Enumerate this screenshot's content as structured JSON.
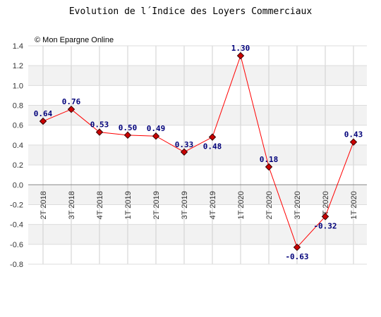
{
  "chart_data": {
    "type": "line",
    "title": "Evolution de l´Indice des Loyers Commerciaux",
    "credit": "© Mon Epargne Online",
    "categories": [
      "2T 2018",
      "3T 2018",
      "4T 2018",
      "1T 2019",
      "2T 2019",
      "3T 2019",
      "4T 2019",
      "1T 2020",
      "2T 2020",
      "3T 2020",
      "4T 2020",
      "1T 2020"
    ],
    "values": [
      0.64,
      0.76,
      0.53,
      0.5,
      0.49,
      0.33,
      0.48,
      1.3,
      0.18,
      -0.63,
      -0.32,
      0.43
    ],
    "value_labels": [
      "0.64",
      "0.76",
      "0.53",
      "0.50",
      "0.49",
      "0.33",
      "0.48",
      "1.30",
      "0.18",
      "-0.63",
      "-0.32",
      "0.43"
    ],
    "yticks": [
      "1.4",
      "1.2",
      "1.0",
      "0.8",
      "0.6",
      "0.4",
      "0.2",
      "0.0",
      "-0.2",
      "-0.4",
      "-0.6",
      "-0.8"
    ],
    "ylim": [
      -0.8,
      1.4
    ],
    "grid": true,
    "colors": {
      "line": "#ff0000",
      "marker": "#cc0000",
      "label": "#00007a",
      "band": "#f2f2f2"
    }
  }
}
